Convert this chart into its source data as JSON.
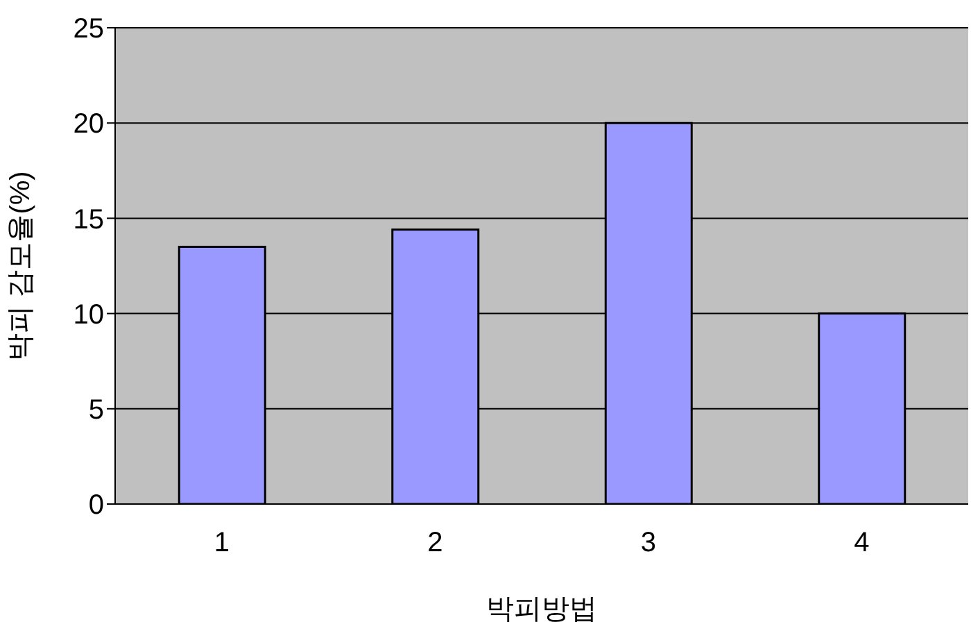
{
  "chart_data": {
    "type": "bar",
    "xlabel": "박피방법",
    "ylabel": "박피 감모율(%)",
    "categories": [
      "1",
      "2",
      "3",
      "4"
    ],
    "values": [
      13.5,
      14.4,
      20,
      10
    ],
    "color": "#9999ff",
    "ylim": [
      0,
      25
    ],
    "yticks": [
      0,
      5,
      10,
      15,
      20,
      25
    ],
    "grid": "y"
  }
}
